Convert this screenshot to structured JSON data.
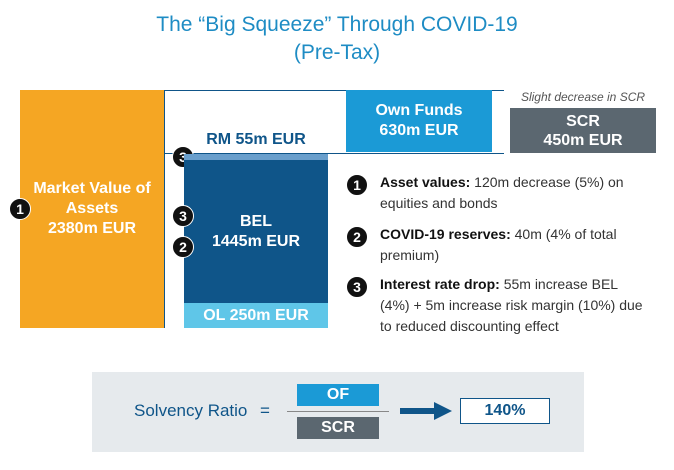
{
  "title": {
    "line1": "The “Big Squeeze” Through COVID-19",
    "line2": "(Pre-Tax)"
  },
  "balance_sheet": {
    "assets": {
      "line1": "Market Value of",
      "line2": "Assets",
      "line3": "2380m EUR",
      "badge": "1"
    },
    "own_funds": {
      "line1": "Own Funds",
      "line2": "630m EUR"
    },
    "scr_note": "Slight decrease in SCR",
    "scr": {
      "line1": "SCR",
      "line2": "450m EUR"
    },
    "rm": {
      "label": "RM 55m EUR",
      "badge": "3"
    },
    "bel": {
      "line1": "BEL",
      "line2": "1445m EUR",
      "badge_a": "3",
      "badge_b": "2"
    },
    "ol": {
      "label": "OL 250m EUR"
    }
  },
  "notes": [
    {
      "num": "1",
      "bold": "Asset values:",
      "text": " 120m decrease (5%) on equities and bonds"
    },
    {
      "num": "2",
      "bold": "COVID-19 reserves:",
      "text": " 40m (4% of total premium)"
    },
    {
      "num": "3",
      "bold": "Interest rate drop:",
      "text": " 55m increase BEL (4%) + 5m increase risk margin (10%) due to reduced discounting effect"
    }
  ],
  "solvency": {
    "label": "Solvency Ratio",
    "equals": "=",
    "numerator": "OF",
    "denominator": "SCR",
    "result": "140%"
  },
  "colors": {
    "assets": "#f5a623",
    "own_funds": "#1b9ad6",
    "scr": "#5b6770",
    "bel": "#0f5589",
    "ol": "#5fc6e8",
    "rm": "#6a9fcc",
    "title": "#1e8cc4",
    "panel": "#e6eaed"
  }
}
